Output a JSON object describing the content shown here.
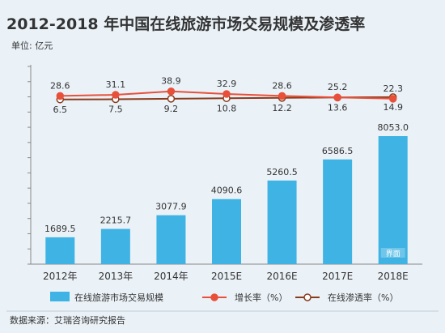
{
  "chart_data": {
    "type": "bar",
    "title": "2012-2018 年中国在线旅游市场交易规模及渗透率",
    "unit": "单位: 亿元",
    "categories": [
      "2012年",
      "2013年",
      "2014年",
      "2015E",
      "2016E",
      "2017E",
      "2018E"
    ],
    "series": [
      {
        "name": "在线旅游市场交易规模",
        "kind": "bar",
        "values": [
          1689.5,
          2215.7,
          3077.9,
          4090.6,
          5260.5,
          6586.5,
          8053.0
        ],
        "labels": [
          "1689.5",
          "2215.7",
          "3077.9",
          "4090.6",
          "5260.5",
          "6586.5",
          "8053.0"
        ]
      },
      {
        "name": "增长率（%）",
        "kind": "line",
        "values": [
          28.6,
          31.1,
          38.9,
          32.9,
          28.6,
          25.2,
          22.3
        ],
        "labels": [
          "28.6",
          "31.1",
          "38.9",
          "32.9",
          "28.6",
          "25.2",
          "22.3"
        ]
      },
      {
        "name": "在线渗透率（%）",
        "kind": "line",
        "values": [
          6.5,
          7.5,
          9.2,
          10.8,
          12.2,
          13.6,
          14.9
        ],
        "labels": [
          "6.5",
          "7.5",
          "9.2",
          "10.8",
          "12.2",
          "13.6",
          "14.9"
        ]
      }
    ],
    "ylim": [
      0,
      10000
    ],
    "source": "数据来源：艾瑞咨询研究报告",
    "watermark": "界面",
    "colors": {
      "bar": "#3fb3e3",
      "growth": "#e8503a",
      "penetration": "#8a3b1c",
      "background": "#eaf2f8",
      "text": "#333333",
      "axis": "#888888"
    }
  }
}
